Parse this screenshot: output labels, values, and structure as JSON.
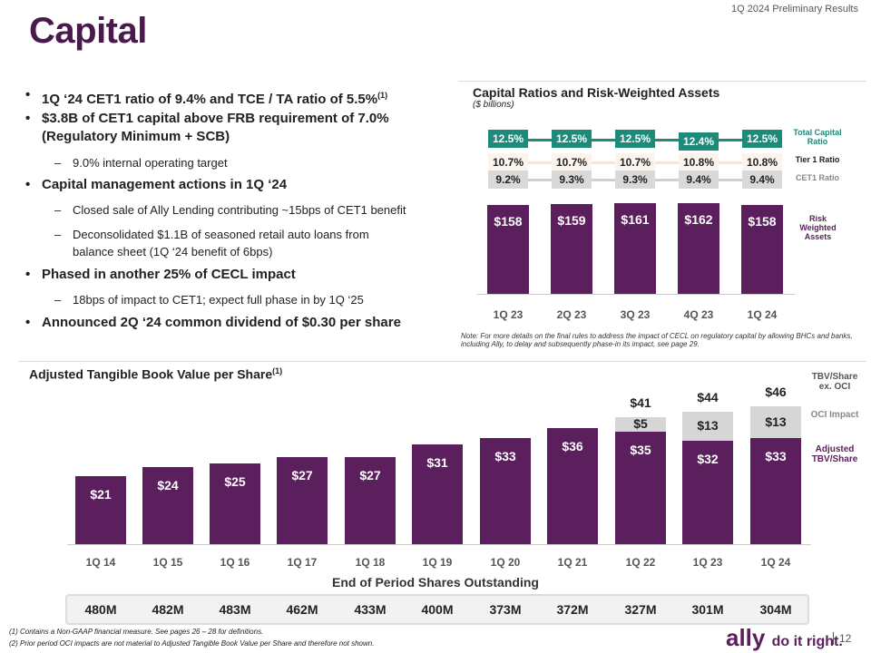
{
  "header": "1Q 2024 Preliminary Results",
  "title": "Capital",
  "bullets": [
    {
      "text": "1Q ‘24 CET1 ratio of 9.4% and TCE / TA ratio of 5.5%",
      "sup": "(1)",
      "level": 1
    },
    {
      "text": "$3.8B of CET1 capital above FRB requirement of 7.0%",
      "level": 1
    },
    {
      "text": "(Regulatory Minimum + SCB)",
      "level": 1
    },
    {
      "text": "9.0% internal operating target",
      "level": 2
    },
    {
      "text": "Capital management actions in 1Q ‘24",
      "level": 1
    },
    {
      "text": "Closed sale of Ally Lending contributing ~15bps of CET1 benefit",
      "level": 2
    },
    {
      "text": "Deconsolidated $1.1B of seasoned retail auto loans from",
      "level": 2
    },
    {
      "text": "balance sheet (1Q ‘24 benefit of 6bps)",
      "level": 2
    },
    {
      "text": "Phased in another 25% of CECL impact",
      "level": 1
    },
    {
      "text": "18bps of impact to CET1; expect full phase in by 1Q ‘25",
      "level": 2
    },
    {
      "text": "Announced 2Q ‘24 common dividend of $0.30 per share",
      "level": 1
    }
  ],
  "colors": {
    "purple": "#5a1f5c",
    "teal": "#1d8a7a",
    "gray": "#d6d6d6",
    "title": "#4a1a4c"
  },
  "chart_data": [
    {
      "type": "bar",
      "title": "Capital Ratios and Risk-Weighted Assets",
      "subtitle": "($ billions)",
      "categories": [
        "1Q 23",
        "2Q 23",
        "3Q 23",
        "4Q 23",
        "1Q 24"
      ],
      "series": [
        {
          "name": "Total Capital Ratio",
          "labels": [
            "12.5%",
            "12.5%",
            "12.5%",
            "12.4%",
            "12.5%"
          ]
        },
        {
          "name": "Tier 1 Ratio",
          "labels": [
            "10.7%",
            "10.7%",
            "10.7%",
            "10.8%",
            "10.8%"
          ]
        },
        {
          "name": "CET1 Ratio",
          "labels": [
            "9.2%",
            "9.3%",
            "9.3%",
            "9.4%",
            "9.4%"
          ]
        },
        {
          "name": "Risk Weighted Assets",
          "values": [
            158,
            159,
            161,
            162,
            158
          ],
          "labels": [
            "$158",
            "$159",
            "$161",
            "$162",
            "$158"
          ]
        }
      ]
    },
    {
      "type": "bar",
      "title": "Adjusted Tangible Book Value per Share",
      "title_sup": "(1)",
      "categories": [
        "1Q 14",
        "1Q 15",
        "1Q 16",
        "1Q 17",
        "1Q 18",
        "1Q 19",
        "1Q 20",
        "1Q 21",
        "1Q 22",
        "1Q 23",
        "1Q 24"
      ],
      "series": [
        {
          "name": "Adjusted TBV/Share",
          "values": [
            21,
            24,
            25,
            27,
            27,
            31,
            33,
            36,
            35,
            32,
            33
          ]
        },
        {
          "name": "OCI Impact",
          "values": [
            null,
            null,
            null,
            null,
            null,
            null,
            null,
            null,
            5,
            13,
            13
          ]
        },
        {
          "name": "TBV/Share ex. OCI",
          "values": [
            null,
            null,
            null,
            null,
            null,
            null,
            null,
            null,
            41,
            44,
            46
          ]
        }
      ],
      "legend": {
        "total": "TBV/Share ex. OCI",
        "oci": "OCI Impact",
        "adj": "Adjusted TBV/Share"
      }
    }
  ],
  "note": "Note: For more details on the final rules to address the impact of CECL on regulatory capital by allowing BHCs and banks, including Ally, to delay and subsequently phase-in its impact, see page 29.",
  "shares": {
    "title": "End of Period Shares Outstanding",
    "values": [
      "480M",
      "482M",
      "483M",
      "462M",
      "433M",
      "400M",
      "373M",
      "372M",
      "327M",
      "301M",
      "304M"
    ]
  },
  "footnotes": [
    "(1)   Contains a Non-GAAP financial measure. See pages 26 – 28 for definitions.",
    "(2)   Prior period OCI impacts are not material to Adjusted Tangible Book Value per Share and therefore not shown."
  ],
  "logo": {
    "brand": "ally",
    "tagline": "do it right."
  },
  "page": "12"
}
